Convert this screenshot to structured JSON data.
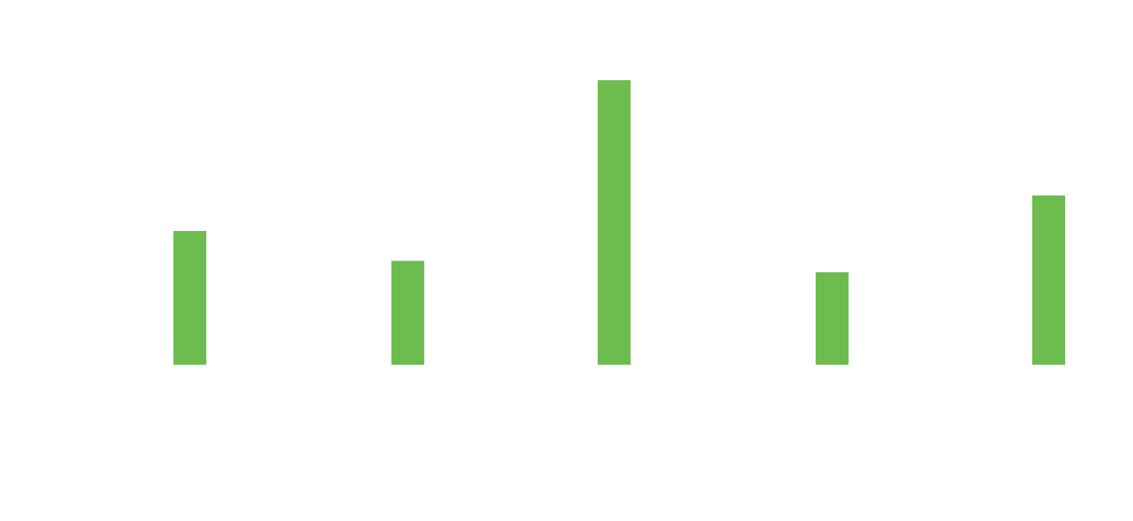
{
  "chart_data": {
    "type": "bar",
    "bar_color": "#6cbd4e",
    "background": "#ffffff",
    "grid": false,
    "legend": "none",
    "ylim": [
      0,
      100
    ],
    "values": [
      47,
      36.5,
      100,
      32.5,
      59.5
    ]
  }
}
